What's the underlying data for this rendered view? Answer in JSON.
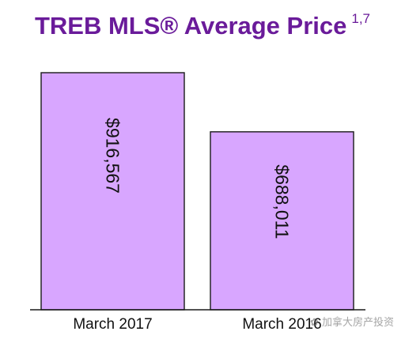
{
  "chart_data": {
    "type": "bar",
    "title": "TREB MLS® Average Price",
    "title_superscript": "1,7",
    "categories": [
      "March 2017",
      "March 2016"
    ],
    "values": [
      916567,
      688011
    ],
    "data_labels": [
      "$916,567",
      "$688,011"
    ],
    "ylim": [
      0,
      1000000
    ],
    "grid": false,
    "legend": "none",
    "bar_color": "#d8a6ff",
    "title_color": "#6a1b9a"
  },
  "watermark": "加拿大房产投资"
}
